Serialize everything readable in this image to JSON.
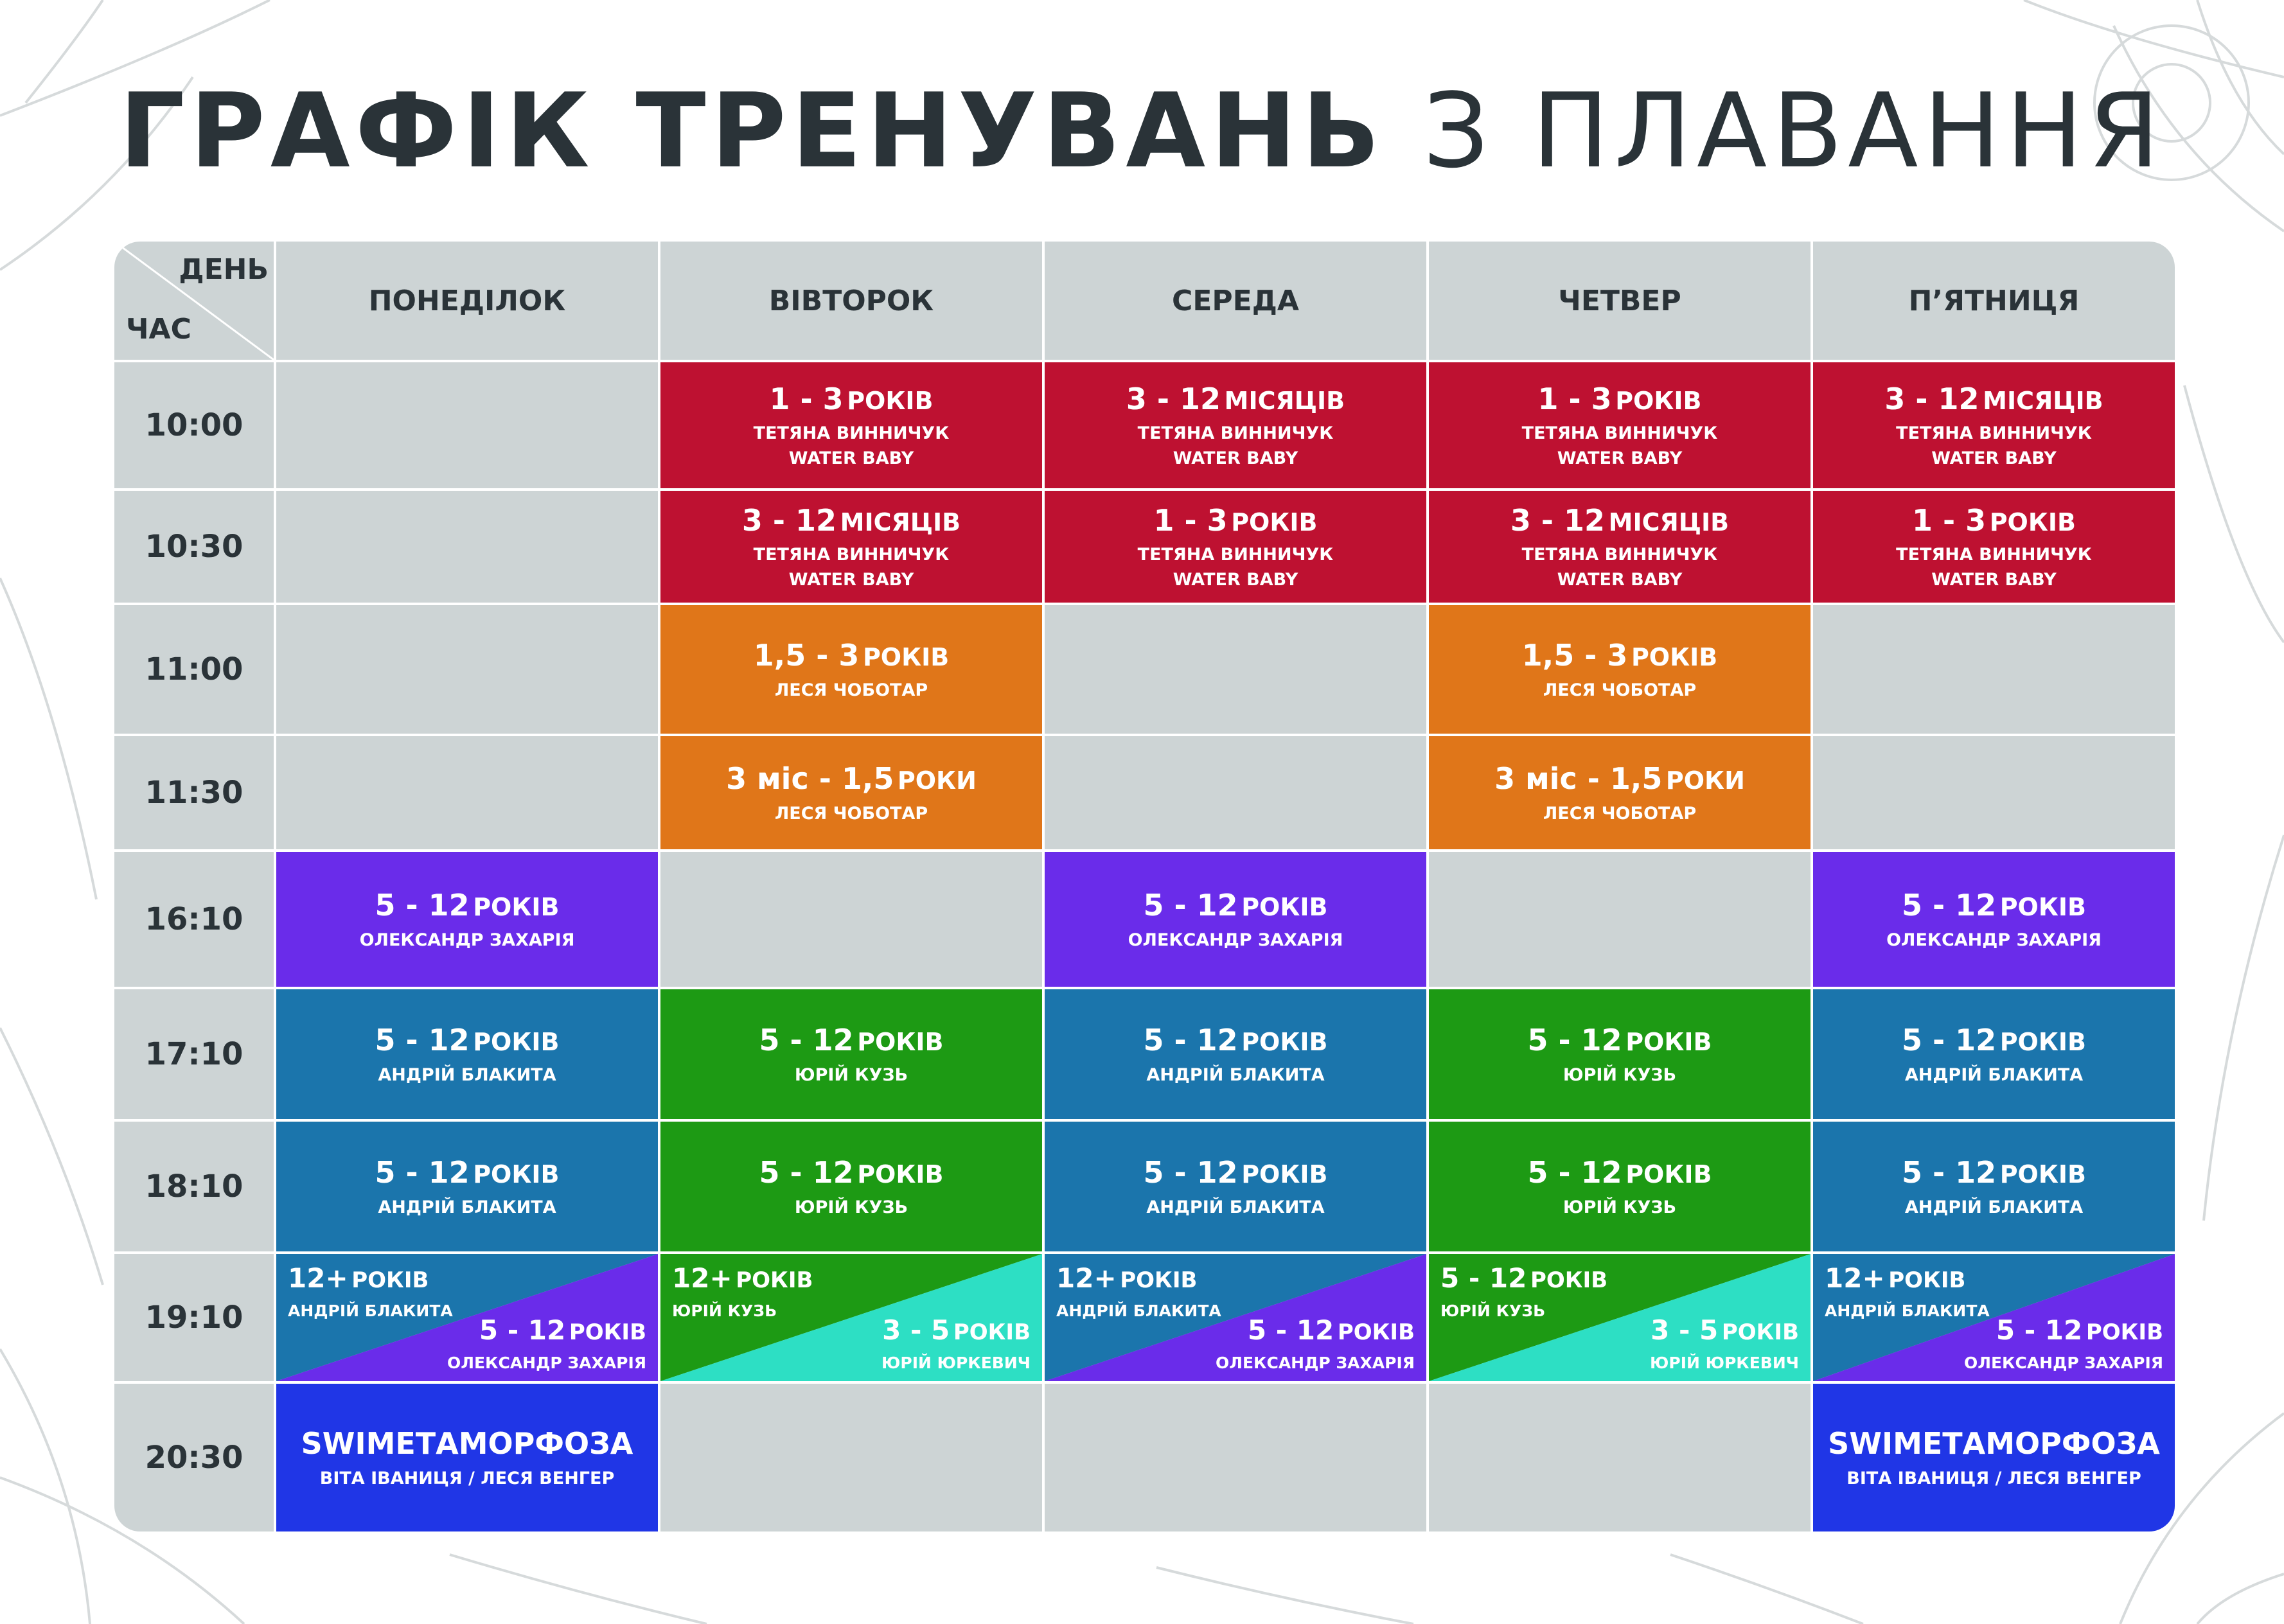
{
  "title": {
    "bold": "ГРАФІК ТРЕНУВАНЬ",
    "normal": "З ПЛАВАННЯ"
  },
  "colors": {
    "red": "#be1131",
    "orange": "#e07619",
    "purple": "#6a2cea",
    "teal_blue": "#1b75ac",
    "green": "#1d9a14",
    "aqua": "#2ddfc4",
    "royal_blue": "#2036e6",
    "grey": "#c5cdce",
    "text_dark": "#2a3338"
  },
  "corner": {
    "day": "ДЕНЬ",
    "time": "ЧАС"
  },
  "days": [
    "ПОНЕДІЛОК",
    "ВІВТОРОК",
    "СЕРЕДА",
    "ЧЕТВЕР",
    "П’ЯТНИЦЯ"
  ],
  "times": [
    "10:00",
    "10:30",
    "11:00",
    "11:30",
    "16:10",
    "17:10",
    "18:10",
    "19:10",
    "20:30"
  ],
  "cells": [
    [
      null,
      {
        "color": "red",
        "num": "1 - 3",
        "unit": "РОКІВ",
        "line2": "ТЕТЯНА ВИННИЧУК",
        "line3": "WATER BABY"
      },
      {
        "color": "red",
        "num": "3 - 12",
        "unit": "МІСЯЦІВ",
        "line2": "ТЕТЯНА ВИННИЧУК",
        "line3": "WATER BABY"
      },
      {
        "color": "red",
        "num": "1 - 3",
        "unit": "РОКІВ",
        "line2": "ТЕТЯНА ВИННИЧУК",
        "line3": "WATER BABY"
      },
      {
        "color": "red",
        "num": "3 - 12",
        "unit": "МІСЯЦІВ",
        "line2": "ТЕТЯНА ВИННИЧУК",
        "line3": "WATER BABY"
      }
    ],
    [
      null,
      {
        "color": "red",
        "num": "3 - 12",
        "unit": "МІСЯЦІВ",
        "line2": "ТЕТЯНА ВИННИЧУК",
        "line3": "WATER BABY"
      },
      {
        "color": "red",
        "num": "1 - 3",
        "unit": "РОКІВ",
        "line2": "ТЕТЯНА ВИННИЧУК",
        "line3": "WATER BABY"
      },
      {
        "color": "red",
        "num": "3 - 12",
        "unit": "МІСЯЦІВ",
        "line2": "ТЕТЯНА ВИННИЧУК",
        "line3": "WATER BABY"
      },
      {
        "color": "red",
        "num": "1 - 3",
        "unit": "РОКІВ",
        "line2": "ТЕТЯНА ВИННИЧУК",
        "line3": "WATER BABY"
      }
    ],
    [
      null,
      {
        "color": "orange",
        "num": "1,5 - 3",
        "unit": "РОКІВ",
        "line2": "ЛЕСЯ ЧОБОТАР"
      },
      null,
      {
        "color": "orange",
        "num": "1,5 - 3",
        "unit": "РОКІВ",
        "line2": "ЛЕСЯ ЧОБОТАР"
      },
      null
    ],
    [
      null,
      {
        "color": "orange",
        "num": "3 міс - 1,5",
        "unit": "РОКИ",
        "line2": "ЛЕСЯ ЧОБОТАР"
      },
      null,
      {
        "color": "orange",
        "num": "3 міс - 1,5",
        "unit": "РОКИ",
        "line2": "ЛЕСЯ ЧОБОТАР"
      },
      null
    ],
    [
      {
        "color": "purple",
        "num": "5 - 12",
        "unit": "РОКІВ",
        "line2": "ОЛЕКСАНДР ЗАХАРІЯ"
      },
      null,
      {
        "color": "purple",
        "num": "5 - 12",
        "unit": "РОКІВ",
        "line2": "ОЛЕКСАНДР ЗАХАРІЯ"
      },
      null,
      {
        "color": "purple",
        "num": "5 - 12",
        "unit": "РОКІВ",
        "line2": "ОЛЕКСАНДР ЗАХАРІЯ"
      }
    ],
    [
      {
        "color": "teal_blue",
        "num": "5 - 12",
        "unit": "РОКІВ",
        "line2": "АНДРІЙ БЛАКИТА"
      },
      {
        "color": "green",
        "num": "5 - 12",
        "unit": "РОКІВ",
        "line2": "ЮРІЙ КУЗЬ"
      },
      {
        "color": "teal_blue",
        "num": "5 - 12",
        "unit": "РОКІВ",
        "line2": "АНДРІЙ БЛАКИТА"
      },
      {
        "color": "green",
        "num": "5 - 12",
        "unit": "РОКІВ",
        "line2": "ЮРІЙ КУЗЬ"
      },
      {
        "color": "teal_blue",
        "num": "5 - 12",
        "unit": "РОКІВ",
        "line2": "АНДРІЙ БЛАКИТА"
      }
    ],
    [
      {
        "color": "teal_blue",
        "num": "5 - 12",
        "unit": "РОКІВ",
        "line2": "АНДРІЙ БЛАКИТА"
      },
      {
        "color": "green",
        "num": "5 - 12",
        "unit": "РОКІВ",
        "line2": "ЮРІЙ КУЗЬ"
      },
      {
        "color": "teal_blue",
        "num": "5 - 12",
        "unit": "РОКІВ",
        "line2": "АНДРІЙ БЛАКИТА"
      },
      {
        "color": "green",
        "num": "5 - 12",
        "unit": "РОКІВ",
        "line2": "ЮРІЙ КУЗЬ"
      },
      {
        "color": "teal_blue",
        "num": "5 - 12",
        "unit": "РОКІВ",
        "line2": "АНДРІЙ БЛАКИТА"
      }
    ],
    [
      {
        "split": true,
        "a": {
          "color": "teal_blue",
          "num": "12+",
          "unit": "РОКІВ",
          "name": "АНДРІЙ БЛАКИТА"
        },
        "b": {
          "color": "purple",
          "num": "5 - 12",
          "unit": "РОКІВ",
          "name": "ОЛЕКСАНДР ЗАХАРІЯ"
        }
      },
      {
        "split": true,
        "a": {
          "color": "green",
          "num": "12+",
          "unit": "РОКІВ",
          "name": "ЮРІЙ КУЗЬ"
        },
        "b": {
          "color": "aqua",
          "num": "3 - 5",
          "unit": "РОКІВ",
          "name": "ЮРІЙ ЮРКЕВИЧ"
        }
      },
      {
        "split": true,
        "a": {
          "color": "teal_blue",
          "num": "12+",
          "unit": "РОКІВ",
          "name": "АНДРІЙ БЛАКИТА"
        },
        "b": {
          "color": "purple",
          "num": "5 - 12",
          "unit": "РОКІВ",
          "name": "ОЛЕКСАНДР ЗАХАРІЯ"
        }
      },
      {
        "split": true,
        "a": {
          "color": "green",
          "num": "5 - 12",
          "unit": "РОКІВ",
          "name": "ЮРІЙ КУЗЬ"
        },
        "b": {
          "color": "aqua",
          "num": "3 - 5",
          "unit": "РОКІВ",
          "name": "ЮРІЙ ЮРКЕВИЧ"
        }
      },
      {
        "split": true,
        "a": {
          "color": "teal_blue",
          "num": "12+",
          "unit": "РОКІВ",
          "name": "АНДРІЙ БЛАКИТА"
        },
        "b": {
          "color": "purple",
          "num": "5 - 12",
          "unit": "РОКІВ",
          "name": "ОЛЕКСАНДР ЗАХАРІЯ"
        }
      }
    ],
    [
      {
        "color": "royal_blue",
        "num": "SWIMЕТАМОРФОЗА",
        "unit": "",
        "line2": "ВІТА ІВАНИЦЯ / ЛЕСЯ ВЕНГЕР"
      },
      null,
      null,
      null,
      {
        "color": "royal_blue",
        "num": "SWIMЕТАМОРФОЗА",
        "unit": "",
        "line2": "ВІТА ІВАНИЦЯ / ЛЕСЯ ВЕНГЕР"
      }
    ]
  ]
}
